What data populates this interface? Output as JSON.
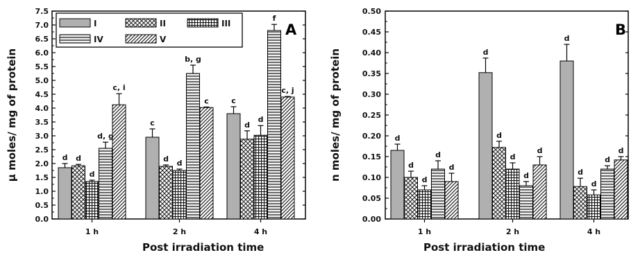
{
  "chart_data": [
    {
      "type": "bar",
      "panel_label": "A",
      "categories": [
        "1 h",
        "2 h",
        "4 h"
      ],
      "series": [
        {
          "name": "I",
          "values": [
            1.85,
            2.95,
            3.8
          ],
          "errors": [
            0.15,
            0.3,
            0.25
          ],
          "labels": [
            "d",
            "c",
            "c"
          ]
        },
        {
          "name": "II",
          "values": [
            1.92,
            1.9,
            2.88
          ],
          "errors": [
            0.05,
            0.05,
            0.3
          ],
          "labels": [
            "d",
            "d",
            "d"
          ]
        },
        {
          "name": "III",
          "values": [
            1.35,
            1.75,
            3.02
          ],
          "errors": [
            0.05,
            0.05,
            0.35
          ],
          "labels": [
            "d",
            "d",
            "d"
          ]
        },
        {
          "name": "IV",
          "values": [
            2.55,
            5.25,
            6.8
          ],
          "errors": [
            0.22,
            0.3,
            0.22
          ],
          "labels": [
            "d, g",
            "b, g",
            "f"
          ]
        },
        {
          "name": "V",
          "values": [
            4.12,
            4.02,
            4.4
          ],
          "errors": [
            0.4,
            0.02,
            0.02
          ],
          "labels": [
            "c, i",
            "c",
            "c, j"
          ]
        }
      ],
      "xlabel": "Post irradiation time",
      "ylabel": "μ moles/ mg of protein",
      "ylim": [
        0,
        7.5
      ],
      "yticks": [
        "0.0",
        "0.5",
        "1.0",
        "1.5",
        "2.0",
        "2.5",
        "3.0",
        "3.5",
        "4.0",
        "4.5",
        "5.0",
        "5.5",
        "6.0",
        "6.5",
        "7.0",
        "7.5"
      ],
      "legend": "top-left",
      "grid": false
    },
    {
      "type": "bar",
      "panel_label": "B",
      "categories": [
        "1 h",
        "2 h",
        "4 h"
      ],
      "series": [
        {
          "values": [
            0.165,
            0.352,
            0.38
          ],
          "errors": [
            0.015,
            0.035,
            0.04
          ],
          "labels": [
            "d",
            "d",
            "d"
          ]
        },
        {
          "values": [
            0.1,
            0.172,
            0.078
          ],
          "errors": [
            0.015,
            0.015,
            0.02
          ],
          "labels": [
            "d",
            "d",
            "d"
          ]
        },
        {
          "values": [
            0.07,
            0.12,
            0.058
          ],
          "errors": [
            0.01,
            0.015,
            0.012
          ],
          "labels": [
            "d",
            "d",
            "d"
          ]
        },
        {
          "values": [
            0.12,
            0.08,
            0.12
          ],
          "errors": [
            0.02,
            0.01,
            0.008
          ],
          "labels": [
            "d",
            "d",
            "d"
          ]
        },
        {
          "values": [
            0.09,
            0.13,
            0.142
          ],
          "errors": [
            0.02,
            0.02,
            0.008
          ],
          "labels": [
            "d",
            "d",
            "d"
          ]
        }
      ],
      "xlabel": "Post irradiation time",
      "ylabel": "n moles/ mg of protein",
      "ylim": [
        0,
        0.5
      ],
      "yticks": [
        "0.00",
        "0.05",
        "0.10",
        "0.15",
        "0.20",
        "0.25",
        "0.30",
        "0.35",
        "0.40",
        "0.45",
        "0.50"
      ],
      "legend": "none",
      "grid": false
    }
  ]
}
